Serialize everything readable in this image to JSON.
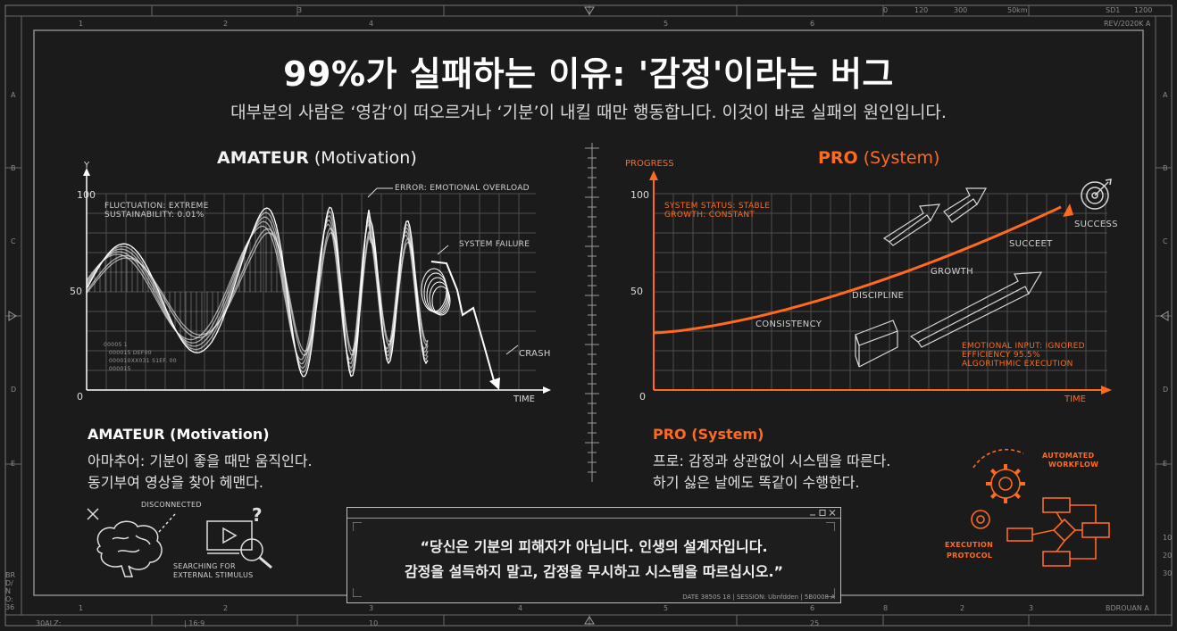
{
  "header": {
    "title": "99%가 실패하는 이유: '감정'이라는 버그",
    "subtitle": "대부분의 사람은 ‘영감’이 떠오르거나 ‘기분’이 내킬 때만 행동합니다. 이것이 바로 실패의 원인입니다."
  },
  "frame": {
    "top_ruler": [
      "1",
      "2",
      "3",
      "4",
      "5",
      "6",
      "0",
      "120",
      "300",
      "50km",
      "SD1",
      "1200"
    ],
    "top_right": "REV/2020K A",
    "bottom_ruler": [
      "1",
      "2",
      "3",
      "4",
      "5",
      "6",
      "8",
      "2",
      "3"
    ],
    "bottom_left": "30ALZ:",
    "bottom_ratio": "| 16:9",
    "bottom_ten": "10",
    "bottom_25": "25",
    "bottom_right": "BDROUAN A",
    "left_letters": [
      "A",
      "B",
      "C",
      "D",
      "E"
    ],
    "left_side_code": "BRD/NO: 36",
    "right_letters": [
      "A",
      "B",
      "C",
      "D",
      "E"
    ],
    "right_codes": [
      "10",
      "20",
      "30"
    ]
  },
  "amateur_chart": {
    "title_bold": "AMATEUR",
    "title_rest": "(Motivation)",
    "y_axis_label": "Y",
    "x_axis_label": "TIME",
    "ticks": [
      "100",
      "50",
      "0"
    ],
    "stats_1": "FLUCTUATION: EXTREME",
    "stats_2": "SUSTAINABILITY: 0.01%",
    "note_error": "ERROR: EMOTIONAL OVERLOAD",
    "note_failure": "SYSTEM FAILURE",
    "note_crash": "CRASH",
    "small_code_1": "00005 1",
    "small_code_2": "000015 DEF00",
    "small_code_3": "000010XX031 S1EF. 00",
    "small_code_4": "000015"
  },
  "pro_chart": {
    "title_bold": "PRO",
    "title_rest": "(System)",
    "y_axis_label": "PROGRESS",
    "x_axis_label": "TIME",
    "ticks": [
      "100",
      "50",
      "0"
    ],
    "status_1": "SYSTEM STATUS: STABLE",
    "status_2": "GROWTH: CONSTANT",
    "labels": [
      "CONSISTENCY",
      "DISCIPLINE",
      "GROWTH",
      "SUCCEET",
      "SUCCESS"
    ],
    "note_1": "EMOTIONAL INPUT: IGNORED",
    "note_2": "EFFICIENCY 95.5%",
    "note_3": "ALGORITHMIC EXECUTION"
  },
  "amateur_section": {
    "heading": "AMATEUR (Motivation)",
    "line_1": "아마추어: 기분이 좋을 때만 움직인다.",
    "line_2": "동기부여 영상을 찾아 헤맨다.",
    "icon_label_1": "DISCONNECTED",
    "icon_label_2": "SEARCHING FOR",
    "icon_label_3": "EXTERNAL STIMULUS"
  },
  "pro_section": {
    "heading": "PRO (System)",
    "line_1": "프로: 감정과 상관없이 시스템을 따른다.",
    "line_2": "하기 싫은 날에도 똑같이 수행한다.",
    "workflow_label_1": "AUTOMATED",
    "workflow_label_2": "WORKFLOW",
    "protocol_label_1": "EXECUTION",
    "protocol_label_2": "PROTOCOL"
  },
  "quote": {
    "line_1": "“당신은 기분의 피해자가 아닙니다. 인생의 설계자입니다.",
    "line_2": "감정을 설득하지 말고, 감정을 무시하고 시스템을 따르십시오.”",
    "footer": "DATE 3850S 18 | SESSION: Ubnfdden | 5B0008 A"
  },
  "colors": {
    "background": "#1b1b1b",
    "accent": "#ff6a1f",
    "line": "#ffffff",
    "grid": "#5a5a5a"
  }
}
